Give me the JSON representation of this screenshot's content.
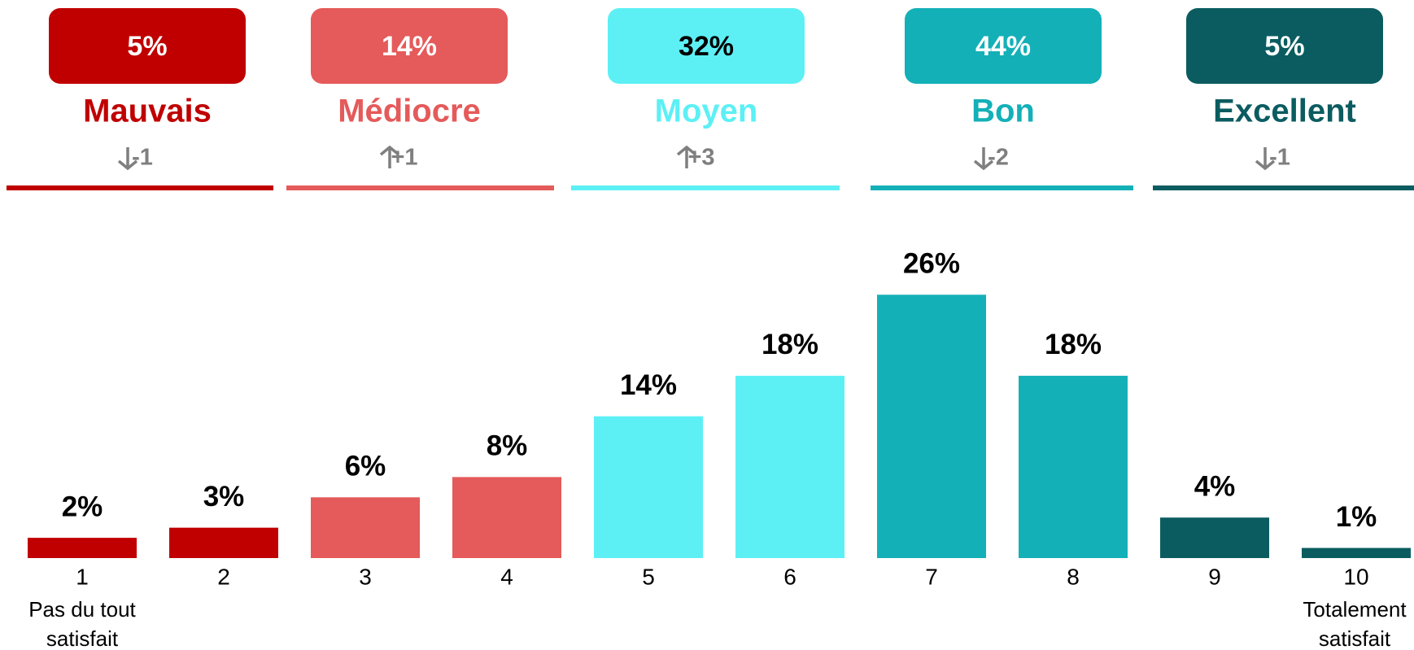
{
  "chart_data": {
    "type": "bar",
    "groups": [
      {
        "name": "Mauvais",
        "value": 5,
        "value_label": "5%",
        "change": -1,
        "change_label": "-1",
        "color": "#c00000",
        "text_color": "#ffffff"
      },
      {
        "name": "Médiocre",
        "value": 14,
        "value_label": "14%",
        "change": 1,
        "change_label": "+1",
        "color": "#e55a5a",
        "text_color": "#ffffff"
      },
      {
        "name": "Moyen",
        "value": 32,
        "value_label": "32%",
        "change": 3,
        "change_label": "+3",
        "color": "#5cf0f5",
        "text_color": "#000000"
      },
      {
        "name": "Bon",
        "value": 44,
        "value_label": "44%",
        "change": -2,
        "change_label": "-2",
        "color": "#14b0b8",
        "text_color": "#ffffff"
      },
      {
        "name": "Excellent",
        "value": 5,
        "value_label": "5%",
        "change": -1,
        "change_label": "-1",
        "color": "#0b5c60",
        "text_color": "#ffffff"
      }
    ],
    "categories": [
      "1",
      "2",
      "3",
      "4",
      "5",
      "6",
      "7",
      "8",
      "9",
      "10"
    ],
    "category_sublabels": [
      [
        "Pas du tout",
        "satisfait"
      ],
      null,
      null,
      null,
      null,
      null,
      null,
      null,
      null,
      [
        "Totalement",
        "satisfait"
      ]
    ],
    "values": [
      2,
      3,
      6,
      8,
      14,
      18,
      26,
      18,
      4,
      1
    ],
    "value_labels": [
      "2%",
      "3%",
      "6%",
      "8%",
      "14%",
      "18%",
      "26%",
      "18%",
      "4%",
      "1%"
    ],
    "colors": [
      "#c00000",
      "#c00000",
      "#e55a5a",
      "#e55a5a",
      "#5cf0f5",
      "#5cf0f5",
      "#14b0b8",
      "#14b0b8",
      "#0b5c60",
      "#0b5c60"
    ]
  }
}
